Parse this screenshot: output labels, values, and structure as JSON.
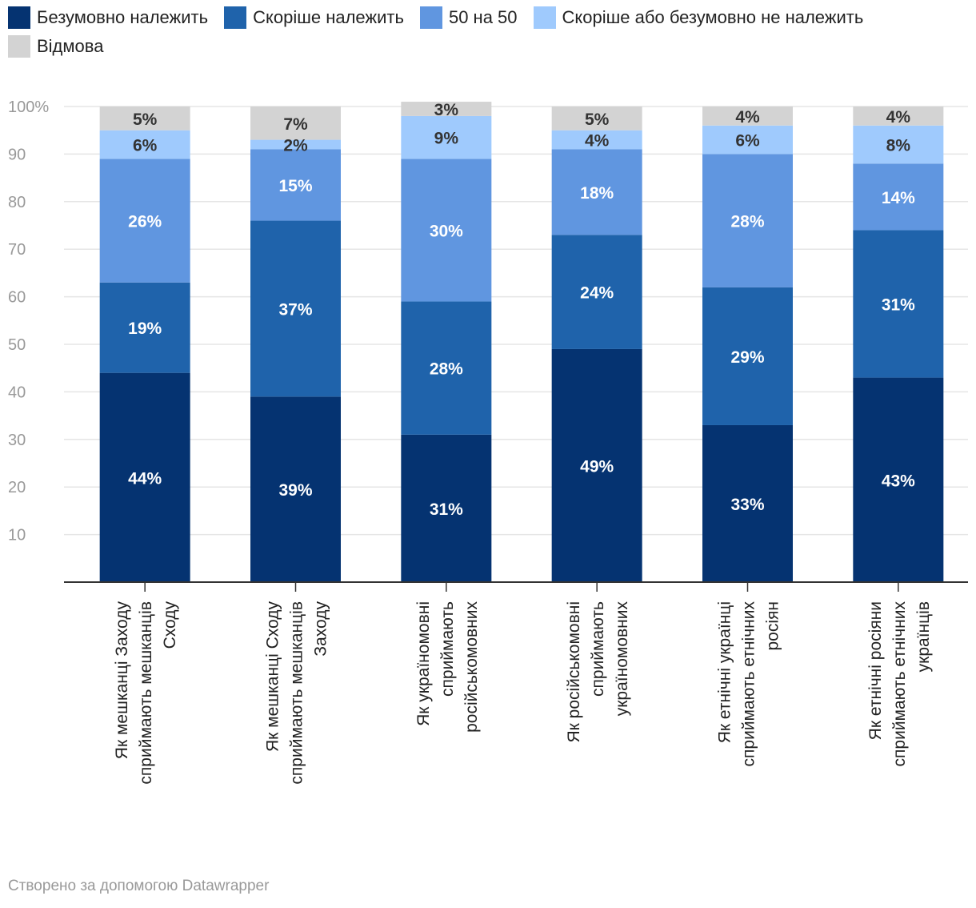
{
  "legend": [
    {
      "label": "Безумовно належить",
      "color": "#053371"
    },
    {
      "label": "Скоріше належить",
      "color": "#1f63ab"
    },
    {
      "label": "50 на 50",
      "color": "#6096e0"
    },
    {
      "label": "Скоріше або безумовно не належить",
      "color": "#9fcafd"
    },
    {
      "label": "Відмова",
      "color": "#d3d3d3"
    }
  ],
  "chart_data": {
    "type": "bar",
    "stacked": true,
    "orientation": "vertical",
    "title": "",
    "xlabel": "",
    "ylabel": "",
    "ylim": [
      0,
      100
    ],
    "yticks": [
      "10",
      "20",
      "30",
      "40",
      "50",
      "60",
      "70",
      "80",
      "90",
      "100%"
    ],
    "grid": true,
    "legend_position": "top",
    "categories": [
      [
        "Як мешканці Заходу",
        "сприймають мешканців",
        "Сходу"
      ],
      [
        "Як мешканці Сходу",
        "сприймають мешканців",
        "Заходу"
      ],
      [
        "Як україномовні",
        "сприймають",
        "російськомовних"
      ],
      [
        "Як російськомовні",
        "сприймають",
        "україномовних"
      ],
      [
        "Як етнічні українці",
        "сприймають етнічних",
        "росіян"
      ],
      [
        "Як етнічні росіяни",
        "сприймають етнічних",
        "українців"
      ]
    ],
    "series": [
      {
        "name": "Безумовно належить",
        "color": "#053371",
        "label_color": "#ffffff",
        "values": [
          44,
          39,
          31,
          49,
          33,
          43
        ]
      },
      {
        "name": "Скоріше належить",
        "color": "#1f63ab",
        "label_color": "#ffffff",
        "values": [
          19,
          37,
          28,
          24,
          29,
          31
        ]
      },
      {
        "name": "50 на 50",
        "color": "#6096e0",
        "label_color": "#ffffff",
        "values": [
          26,
          15,
          30,
          18,
          28,
          14
        ]
      },
      {
        "name": "Скоріше або безумовно не належить",
        "color": "#9fcafd",
        "label_color": "#333333",
        "values": [
          6,
          2,
          9,
          4,
          6,
          8
        ]
      },
      {
        "name": "Відмова",
        "color": "#d3d3d3",
        "label_color": "#333333",
        "values": [
          5,
          7,
          3,
          5,
          4,
          4
        ]
      }
    ]
  },
  "footer": {
    "text": "Створено за допомогою Datawrapper"
  }
}
